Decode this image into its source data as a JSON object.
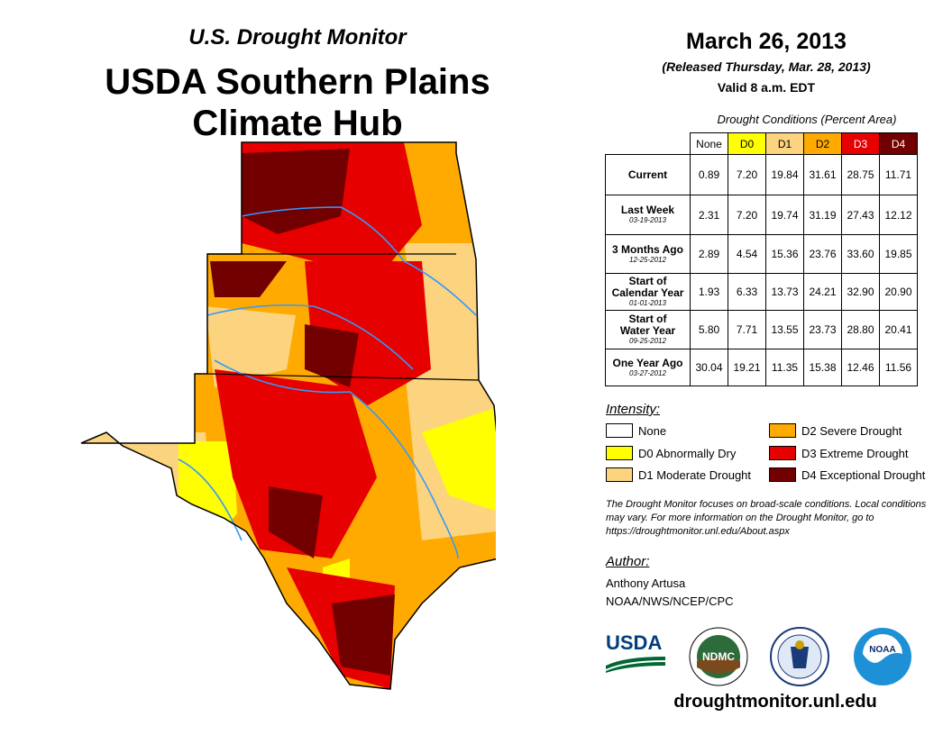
{
  "header": {
    "monitor": "U.S. Drought Monitor",
    "region_line1": "USDA Southern Plains",
    "region_line2": "Climate Hub",
    "date": "March 26, 2013",
    "released": "(Released Thursday, Mar. 28, 2013)",
    "valid": "Valid 8 a.m. EDT"
  },
  "table": {
    "caption": "Drought Conditions (Percent Area)",
    "columns": [
      {
        "label": "None",
        "color": "#ffffff",
        "text": "#000000"
      },
      {
        "label": "D0",
        "color": "#ffff00",
        "text": "#000000"
      },
      {
        "label": "D1",
        "color": "#fcd37f",
        "text": "#000000"
      },
      {
        "label": "D2",
        "color": "#ffaa00",
        "text": "#000000"
      },
      {
        "label": "D3",
        "color": "#e60000",
        "text": "#ffffff"
      },
      {
        "label": "D4",
        "color": "#730000",
        "text": "#ffffff"
      }
    ],
    "rows": [
      {
        "label": "Current",
        "label2": "",
        "sub": "",
        "values": [
          "0.89",
          "7.20",
          "19.84",
          "31.61",
          "28.75",
          "11.71"
        ]
      },
      {
        "label": "Last Week",
        "label2": "",
        "sub": "03-19-2013",
        "values": [
          "2.31",
          "7.20",
          "19.74",
          "31.19",
          "27.43",
          "12.12"
        ]
      },
      {
        "label": "3 Months Ago",
        "label2": "",
        "sub": "12-25-2012",
        "values": [
          "2.89",
          "4.54",
          "15.36",
          "23.76",
          "33.60",
          "19.85"
        ]
      },
      {
        "label": "Start of",
        "label2": "Calendar Year",
        "sub": "01-01-2013",
        "values": [
          "1.93",
          "6.33",
          "13.73",
          "24.21",
          "32.90",
          "20.90"
        ]
      },
      {
        "label": "Start of",
        "label2": "Water Year",
        "sub": "09-25-2012",
        "values": [
          "5.80",
          "7.71",
          "13.55",
          "23.73",
          "28.80",
          "20.41"
        ]
      },
      {
        "label": "One Year Ago",
        "label2": "",
        "sub": "03-27-2012",
        "values": [
          "30.04",
          "19.21",
          "11.35",
          "15.38",
          "12.46",
          "11.56"
        ]
      }
    ]
  },
  "legend": {
    "title": "Intensity:",
    "items": [
      {
        "label": "None",
        "color": "#ffffff"
      },
      {
        "label": "D0 Abnormally Dry",
        "color": "#ffff00"
      },
      {
        "label": "D1 Moderate Drought",
        "color": "#fcd37f"
      },
      {
        "label": "D2 Severe Drought",
        "color": "#ffaa00"
      },
      {
        "label": "D3 Extreme Drought",
        "color": "#e60000"
      },
      {
        "label": "D4 Exceptional Drought",
        "color": "#730000"
      }
    ]
  },
  "note": "The Drought Monitor focuses on broad-scale conditions. Local conditions may vary. For more information on the Drought Monitor, go to https://droughtmonitor.unl.edu/About.aspx",
  "author": {
    "heading": "Author:",
    "name": "Anthony Artusa",
    "org": "NOAA/NWS/NCEP/CPC"
  },
  "logos": {
    "usda": "USDA",
    "ndmc": "NDMC",
    "noaa": "NOAA"
  },
  "website": "droughtmonitor.unl.edu"
}
